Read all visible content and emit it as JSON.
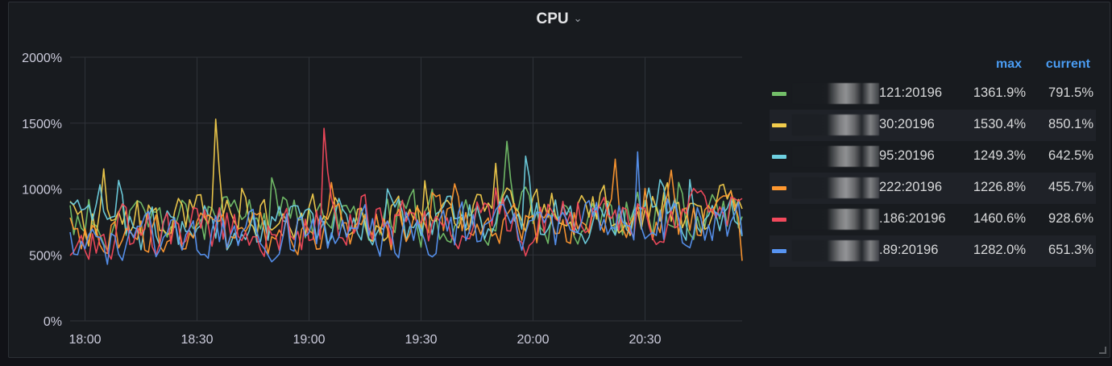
{
  "panel": {
    "title": "CPU",
    "chevron_icon": "chevron-down-icon"
  },
  "colors": {
    "background": "#181b1f",
    "grid": "#2f3339",
    "axis_text": "#ccccdc",
    "legend_header": "#4a9cf2"
  },
  "chart_data": {
    "type": "line",
    "title": "CPU",
    "xlabel": "",
    "ylabel": "",
    "x_ticks": [
      "18:00",
      "18:30",
      "19:00",
      "19:30",
      "20:00",
      "20:30"
    ],
    "y_ticks": [
      "0%",
      "500%",
      "1000%",
      "1500%",
      "2000%"
    ],
    "xlim": [
      "17:56",
      "20:56"
    ],
    "ylim": [
      0,
      2000
    ],
    "grid": true,
    "legend_placement": "right",
    "legend_columns": [
      "max",
      "current"
    ],
    "series": [
      {
        "name": "…121:20196",
        "color": "#73bf69",
        "max": "1361.9%",
        "current": "791.5%",
        "peak": 1361.9,
        "last": 791.5,
        "base_start": 740,
        "base_end": 820,
        "seed": 11
      },
      {
        "name": "…30:20196",
        "color": "#f2cc4c",
        "max": "1530.4%",
        "current": "850.1%",
        "peak": 1530.4,
        "last": 850.1,
        "base_start": 760,
        "base_end": 860,
        "seed": 23
      },
      {
        "name": "…95:20196",
        "color": "#6ed0e0",
        "max": "1249.3%",
        "current": "642.5%",
        "peak": 1249.3,
        "last": 642.5,
        "base_start": 700,
        "base_end": 800,
        "seed": 37
      },
      {
        "name": "…222:20196",
        "color": "#ff9830",
        "max": "1226.8%",
        "current": "455.7%",
        "peak": 1226.8,
        "last": 455.7,
        "base_start": 620,
        "base_end": 780,
        "seed": 41
      },
      {
        "name": "….186:20196",
        "color": "#f2495c",
        "max": "1460.6%",
        "current": "928.6%",
        "peak": 1460.6,
        "last": 928.6,
        "base_start": 660,
        "base_end": 800,
        "seed": 53
      },
      {
        "name": "…89:20196",
        "color": "#5794f2",
        "max": "1282.0%",
        "current": "651.3%",
        "peak": 1282.0,
        "last": 651.3,
        "base_start": 600,
        "base_end": 760,
        "seed": 67
      }
    ]
  },
  "legend": {
    "header_max": "max",
    "header_current": "current",
    "rows": [
      {
        "name": "121:20196",
        "max": "1361.9%",
        "current": "791.5%"
      },
      {
        "name": "30:20196",
        "max": "1530.4%",
        "current": "850.1%"
      },
      {
        "name": "95:20196",
        "max": "1249.3%",
        "current": "642.5%"
      },
      {
        "name": "222:20196",
        "max": "1226.8%",
        "current": "455.7%"
      },
      {
        "name": ".186:20196",
        "max": "1460.6%",
        "current": "928.6%"
      },
      {
        "name": ".89:20196",
        "max": "1282.0%",
        "current": "651.3%"
      }
    ]
  }
}
